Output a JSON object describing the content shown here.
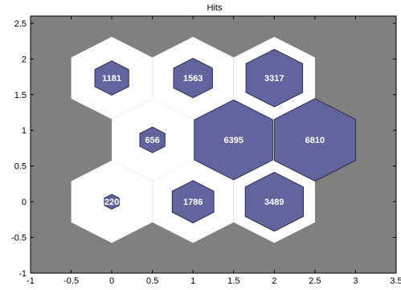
{
  "chart_data": {
    "type": "heatmap",
    "title": "Hits",
    "xlabel": "",
    "ylabel": "",
    "xlim": [
      -1,
      3.5
    ],
    "ylim": [
      -1,
      2.6
    ],
    "xticks": [
      "-1",
      "-0.5",
      "0",
      "0.5",
      "1",
      "1.5",
      "2",
      "2.5",
      "3",
      "3.5"
    ],
    "yticks": [
      "-1",
      "-0.5",
      "0",
      "0.5",
      "1",
      "1.5",
      "2",
      "2.5"
    ],
    "grid": false,
    "hex_size": 0.577,
    "max_hits": 6810,
    "neurons": [
      {
        "x": 0,
        "y": 0,
        "hits": 220
      },
      {
        "x": 1,
        "y": 0,
        "hits": 1786
      },
      {
        "x": 2,
        "y": 0,
        "hits": 3489
      },
      {
        "x": 0.5,
        "y": 0.866,
        "hits": 656
      },
      {
        "x": 1.5,
        "y": 0.866,
        "hits": 6395
      },
      {
        "x": 2.5,
        "y": 0.866,
        "hits": 6810
      },
      {
        "x": 0,
        "y": 1.732,
        "hits": 1181
      },
      {
        "x": 1,
        "y": 1.732,
        "hits": 1563
      },
      {
        "x": 2,
        "y": 1.732,
        "hits": 3317
      }
    ],
    "colors": {
      "background": "#808080",
      "cell": "#ffffff",
      "fill": "#62649e",
      "edge": "#2b2b4a"
    }
  }
}
